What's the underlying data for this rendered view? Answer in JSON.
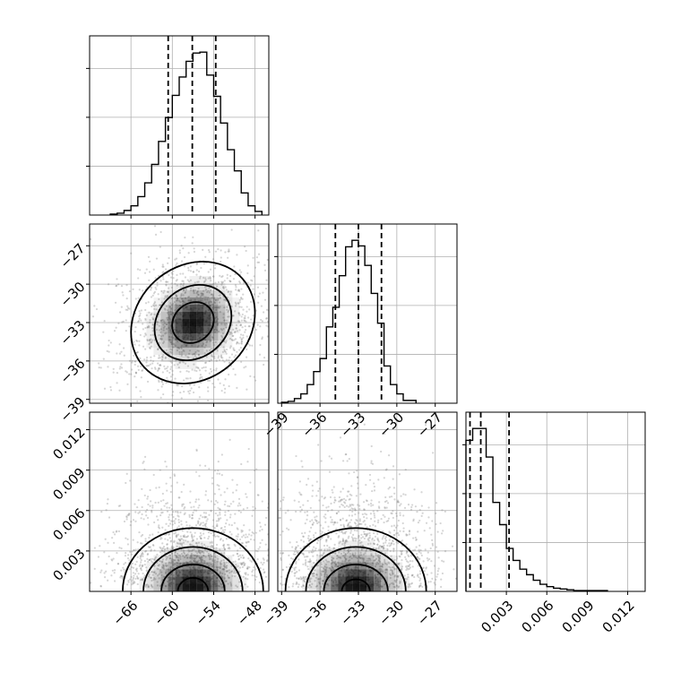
{
  "chart_data": {
    "type": "corner",
    "grid": true,
    "parameters": [
      {
        "range": [
          -72,
          -46
        ],
        "ticks": [
          -66,
          -60,
          -54,
          -48
        ],
        "tick_labels": [
          "−66",
          "−60",
          "−54",
          "−48"
        ]
      },
      {
        "range": [
          -39.3,
          -25.3
        ],
        "ticks": [
          -39,
          -36,
          -33,
          -30,
          -27
        ],
        "tick_labels": [
          "−39",
          "−36",
          "−33",
          "−30",
          "−27"
        ]
      },
      {
        "range": [
          0.0,
          0.0133
        ],
        "ticks": [
          0.003,
          0.006,
          0.009,
          0.012
        ],
        "tick_labels": [
          "0.003",
          "0.006",
          "0.009",
          "0.012"
        ]
      }
    ],
    "histograms": [
      {
        "param": 0,
        "bin_edges": [
          -69,
          -68,
          -67,
          -66,
          -65,
          -64,
          -63,
          -62,
          -61,
          -60,
          -59,
          -58,
          -57,
          -56,
          -55,
          -54,
          -53,
          -52,
          -51,
          -50,
          -49,
          -48,
          -47
        ],
        "counts": [
          1,
          2,
          5,
          10,
          20,
          35,
          55,
          80,
          106,
          130,
          150,
          167,
          176,
          177,
          152,
          129,
          100,
          71,
          48,
          24,
          10,
          4
        ],
        "quantiles": [
          -60.6,
          -57.1,
          -53.7
        ]
      },
      {
        "param": 1,
        "bin_edges": [
          -39,
          -38.5,
          -38,
          -37.5,
          -37,
          -36.5,
          -36,
          -35.5,
          -35,
          -34.5,
          -34,
          -33.5,
          -33,
          -32.5,
          -32,
          -31.5,
          -31,
          -30.5,
          -30,
          -29.5,
          -28.5
        ],
        "counts": [
          1,
          2,
          5,
          10,
          20,
          34,
          48,
          82,
          103,
          137,
          168,
          175,
          169,
          148,
          118,
          86,
          40,
          20,
          10,
          3
        ],
        "quantiles": [
          -34.8,
          -33.0,
          -31.2
        ]
      },
      {
        "param": 2,
        "bin_edges": [
          0.0,
          0.0005,
          0.001,
          0.0015,
          0.002,
          0.0025,
          0.003,
          0.0035,
          0.004,
          0.0045,
          0.005,
          0.0055,
          0.006,
          0.0065,
          0.007,
          0.0075,
          0.008,
          0.0085,
          0.009,
          0.0095,
          0.0105
        ],
        "counts": [
          190,
          205,
          205,
          169,
          112,
          84,
          54,
          39,
          28,
          21,
          14,
          9,
          6,
          4,
          3,
          2,
          1,
          1,
          1,
          1
        ],
        "quantiles": [
          0.0003,
          0.0011,
          0.0032
        ]
      }
    ],
    "pairs": [
      {
        "x_param": 0,
        "y_param": 1,
        "center": [
          -57,
          -33.0
        ],
        "contour_levels": [
          {
            "rx": 9.6,
            "ry": 4.4,
            "rotation_deg": -42
          },
          {
            "rx": 6.0,
            "ry": 2.7,
            "rotation_deg": -42
          },
          {
            "rx": 3.2,
            "ry": 1.5,
            "rotation_deg": -42
          }
        ]
      },
      {
        "x_param": 0,
        "y_param": 2,
        "center": [
          -57,
          0.0003
        ],
        "contour_levels": [
          {
            "rx": 10.2,
            "ry": 0.0047
          },
          {
            "rx": 7.2,
            "ry": 0.0033
          },
          {
            "rx": 4.6,
            "ry": 0.002
          },
          {
            "rx": 2.2,
            "ry": 0.001
          }
        ]
      },
      {
        "x_param": 1,
        "y_param": 2,
        "center": [
          -33.2,
          0.0003
        ],
        "contour_levels": [
          {
            "rx": 5.5,
            "ry": 0.0047
          },
          {
            "rx": 3.9,
            "ry": 0.0033
          },
          {
            "rx": 2.5,
            "ry": 0.002
          },
          {
            "rx": 1.1,
            "ry": 0.0009
          }
        ]
      }
    ]
  },
  "style": {
    "line_color": "#000000",
    "grid_color": "#b0b0b0",
    "point_color": "#888888",
    "density_color": "#000000"
  }
}
